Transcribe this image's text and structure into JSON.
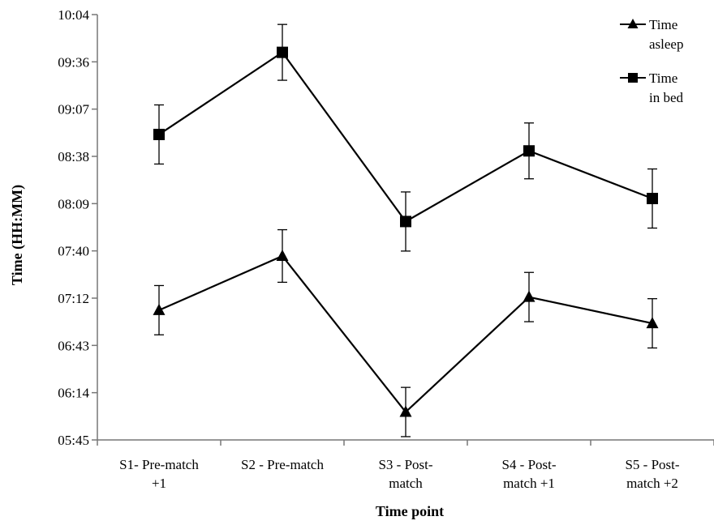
{
  "chart_data": {
    "type": "line",
    "xlabel": "Time point",
    "ylabel": "Time (HH:MM)",
    "categories": [
      [
        "S1- Pre-match",
        "+1"
      ],
      [
        "S2 - Pre-match"
      ],
      [
        "S3 - Post-",
        "match"
      ],
      [
        "S4 - Post-",
        "match +1"
      ],
      [
        "S5 - Post-",
        "match +2"
      ]
    ],
    "y_ticks": [
      "05:45",
      "06:14",
      "06:43",
      "07:12",
      "07:40",
      "08:09",
      "08:38",
      "09:07",
      "09:36",
      "10:04"
    ],
    "ylim_minutes": [
      345,
      604
    ],
    "grid": false,
    "legend_position": "top-right",
    "series": [
      {
        "name_lines": [
          "Time",
          "asleep"
        ],
        "marker": "triangle",
        "values_minutes": [
          424,
          457,
          362,
          432,
          416
        ],
        "error_minutes": [
          15,
          16,
          15,
          15,
          15
        ]
      },
      {
        "name_lines": [
          "Time",
          "in bed"
        ],
        "marker": "square",
        "values_minutes": [
          531,
          581,
          478,
          521,
          492
        ],
        "error_minutes": [
          18,
          17,
          18,
          17,
          18
        ]
      }
    ]
  }
}
